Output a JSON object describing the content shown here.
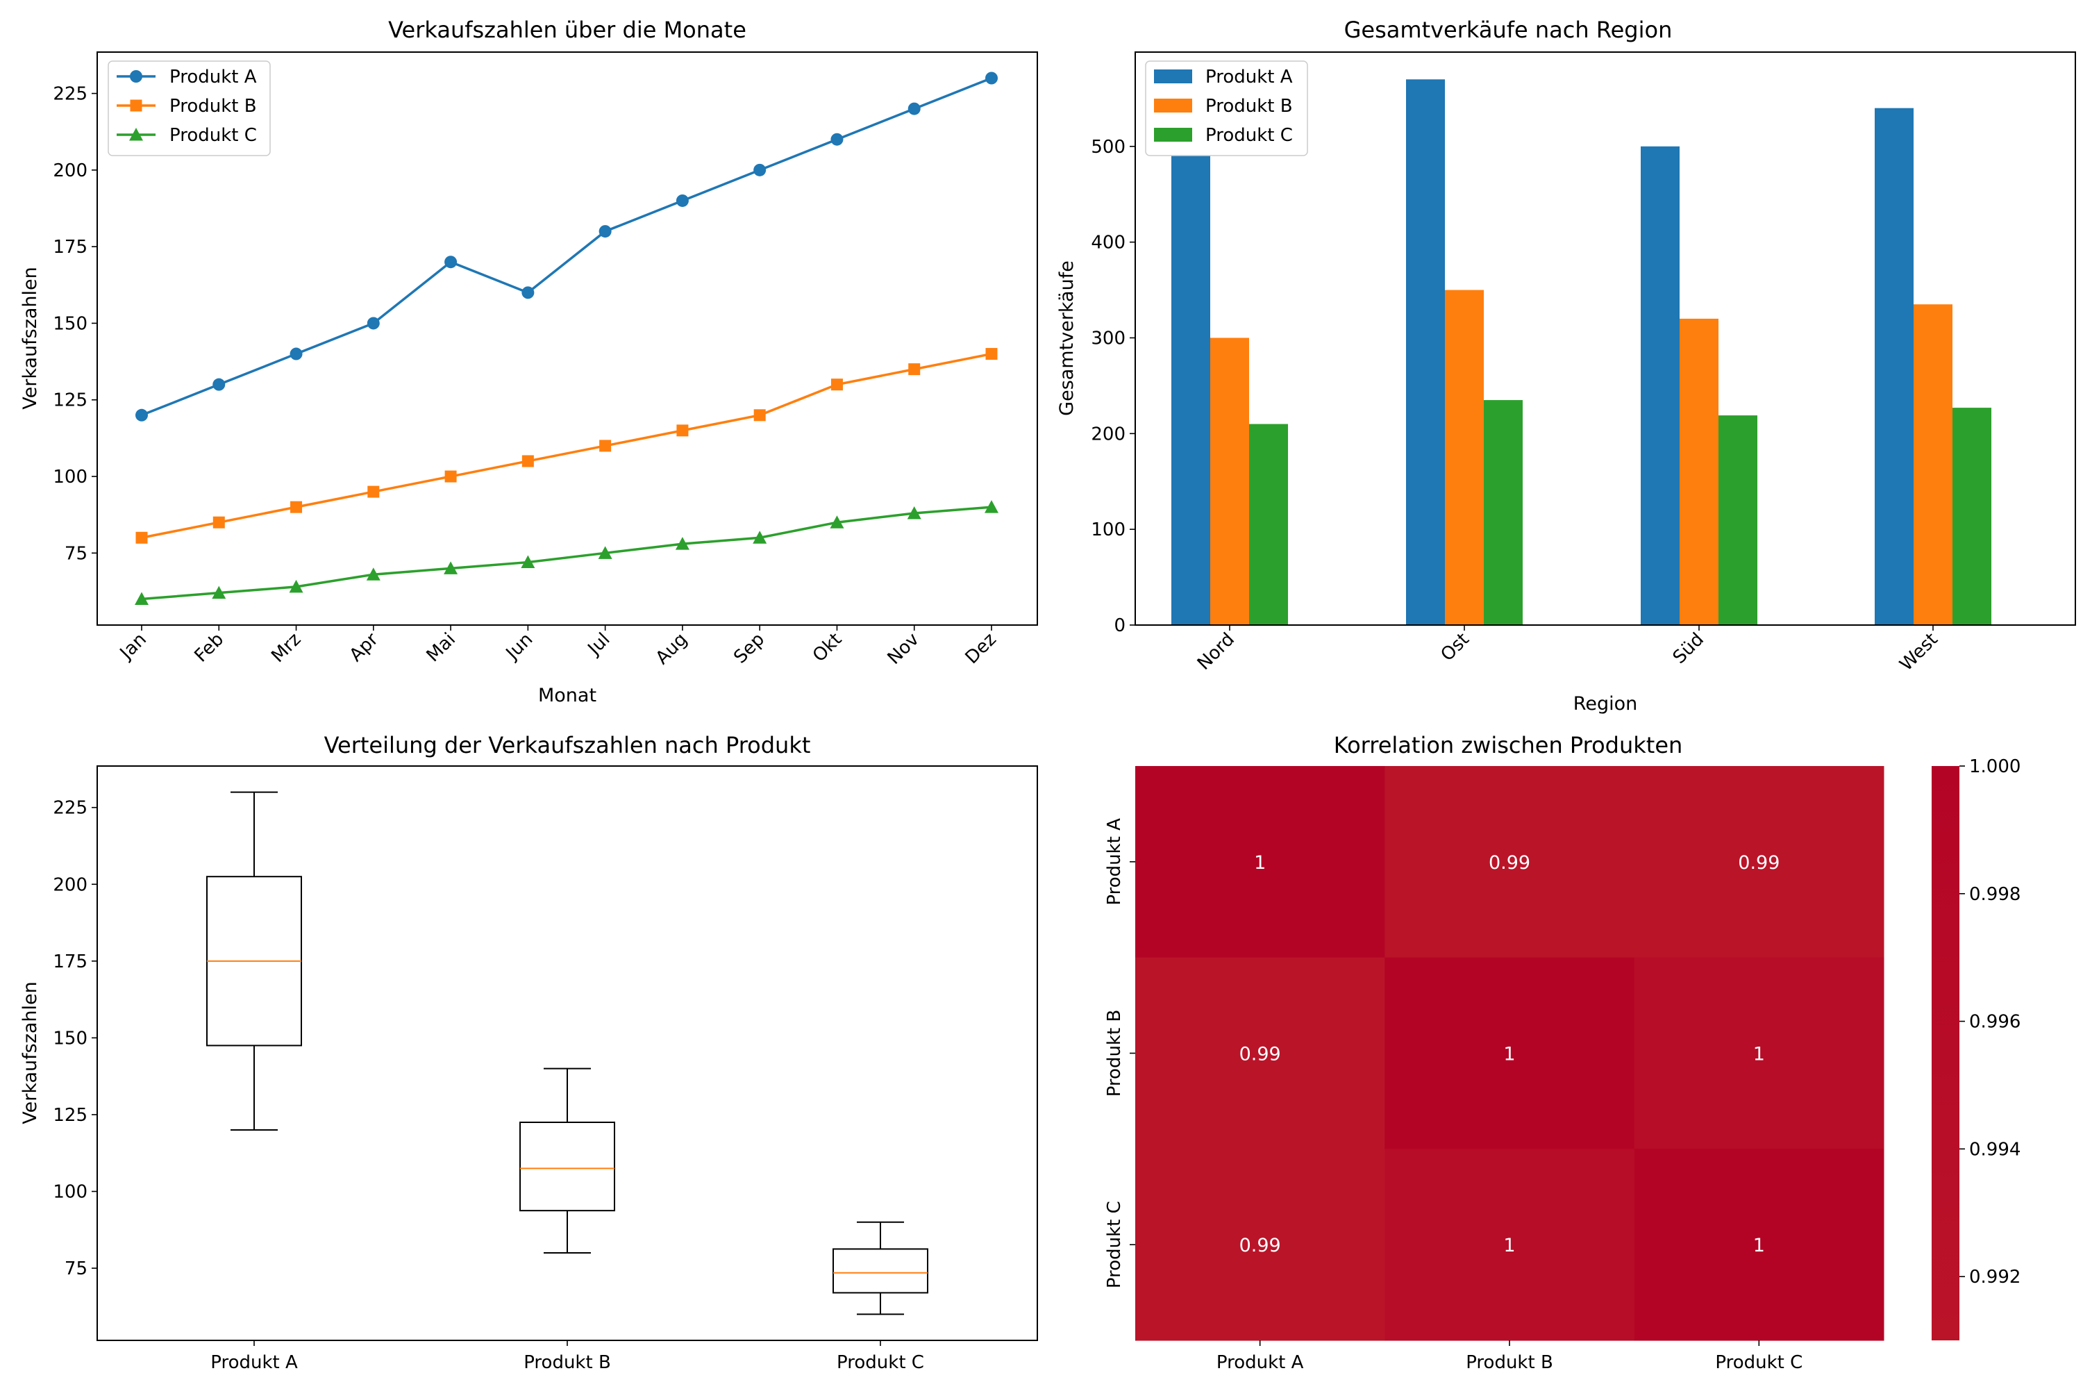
{
  "chart_data": [
    {
      "type": "line",
      "title": "Verkaufszahlen über die Monate",
      "xlabel": "Monat",
      "ylabel": "Verkaufszahlen",
      "categories": [
        "Jan",
        "Feb",
        "Mrz",
        "Apr",
        "Mai",
        "Jun",
        "Jul",
        "Aug",
        "Sep",
        "Okt",
        "Nov",
        "Dez"
      ],
      "series": [
        {
          "name": "Produkt A",
          "marker": "circle",
          "color": "#1f77b4",
          "values": [
            120,
            130,
            140,
            150,
            170,
            160,
            180,
            190,
            200,
            210,
            220,
            230
          ]
        },
        {
          "name": "Produkt B",
          "marker": "square",
          "color": "#ff7f0e",
          "values": [
            80,
            85,
            90,
            95,
            100,
            105,
            110,
            115,
            120,
            130,
            135,
            140
          ]
        },
        {
          "name": "Produkt C",
          "marker": "triangle",
          "color": "#2ca02c",
          "values": [
            60,
            62,
            64,
            68,
            70,
            72,
            75,
            78,
            80,
            85,
            88,
            90
          ]
        }
      ],
      "ylim": [
        51.5,
        238.5
      ],
      "yticks": [
        75,
        100,
        125,
        150,
        175,
        200,
        225
      ],
      "legend": "upper-left",
      "grid": false
    },
    {
      "type": "bar",
      "title": "Gesamtverkäufe nach Region",
      "xlabel": "Region",
      "ylabel": "Gesamtverkäufe",
      "categories": [
        "Nord",
        "Ost",
        "Süd",
        "West"
      ],
      "series": [
        {
          "name": "Produkt A",
          "color": "#1f77b4",
          "values": [
            490,
            570,
            500,
            540
          ]
        },
        {
          "name": "Produkt B",
          "color": "#ff7f0e",
          "values": [
            300,
            350,
            320,
            335
          ]
        },
        {
          "name": "Produkt C",
          "color": "#2ca02c",
          "values": [
            210,
            235,
            219,
            227
          ]
        }
      ],
      "ylim": [
        0,
        598.5
      ],
      "yticks": [
        0,
        100,
        200,
        300,
        400,
        500
      ],
      "legend": "upper-left",
      "grid": false
    },
    {
      "type": "box",
      "title": "Verteilung der Verkaufszahlen nach Produkt",
      "xlabel": "",
      "ylabel": "Verkaufszahlen",
      "categories": [
        "Produkt A",
        "Produkt B",
        "Produkt C"
      ],
      "boxes": [
        {
          "name": "Produkt A",
          "whisker_low": 120,
          "q1": 147.5,
          "median": 175,
          "q3": 202.5,
          "whisker_high": 230
        },
        {
          "name": "Produkt B",
          "whisker_low": 80,
          "q1": 93.75,
          "median": 107.5,
          "q3": 122.5,
          "whisker_high": 140
        },
        {
          "name": "Produkt C",
          "whisker_low": 60,
          "q1": 67,
          "median": 73.5,
          "q3": 81.25,
          "whisker_high": 90
        }
      ],
      "ylim": [
        51.5,
        238.5
      ],
      "yticks": [
        75,
        100,
        125,
        150,
        175,
        200,
        225
      ],
      "grid": false
    },
    {
      "type": "heatmap",
      "title": "Korrelation zwischen Produkten",
      "rows": [
        "Produkt A",
        "Produkt B",
        "Produkt C"
      ],
      "columns": [
        "Produkt A",
        "Produkt B",
        "Produkt C"
      ],
      "values": [
        [
          1.0,
          0.993,
          0.991
        ],
        [
          0.993,
          1.0,
          0.998
        ],
        [
          0.991,
          0.998,
          1.0
        ]
      ],
      "annotations": [
        [
          "1",
          "0.99",
          "0.99"
        ],
        [
          "0.99",
          "1",
          "1"
        ],
        [
          "0.99",
          "1",
          "1"
        ]
      ],
      "colorbar": {
        "min": 0.991,
        "max": 1.0,
        "ticks": [
          "1.000",
          "0.998",
          "0.996",
          "0.994",
          "0.992"
        ],
        "tick_values": [
          1.0,
          0.998,
          0.996,
          0.994,
          0.992
        ]
      },
      "colors": {
        "cell_max": "#b40426",
        "cell_mid": "#b70d28",
        "cell_min": "#ba1429"
      }
    }
  ]
}
